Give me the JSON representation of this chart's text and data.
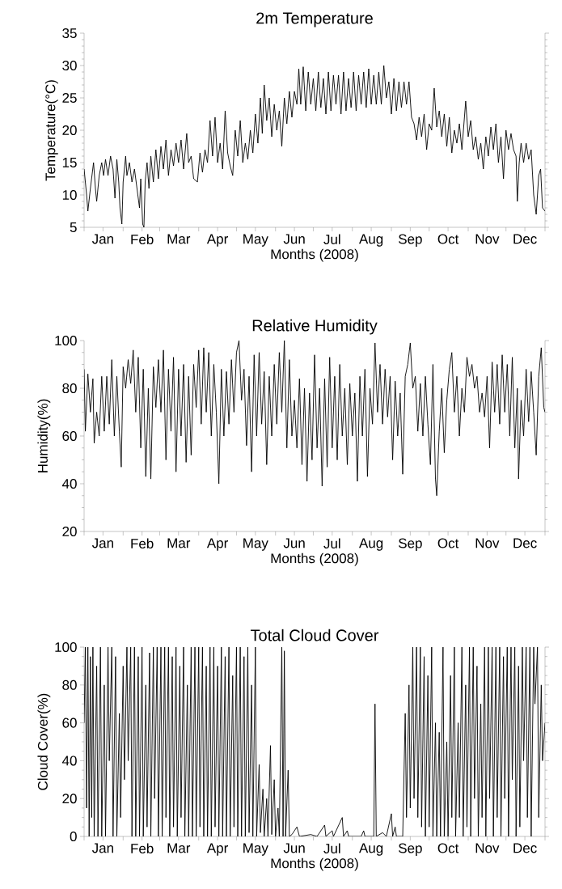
{
  "chart_data": [
    {
      "type": "line",
      "title": "2m Temperature",
      "xlabel": "Months (2008)",
      "ylabel": "Temperature(°C)",
      "color": "#000000",
      "xlim": [
        "2008-01-01",
        "2009-01-01"
      ],
      "ylim": [
        5,
        35
      ],
      "yticks": [
        5,
        10,
        15,
        20,
        25,
        30,
        35
      ],
      "xticks": [
        {
          "value": "2008-01-01",
          "label": null
        },
        {
          "value": "2008-01-16",
          "label": "Jan"
        },
        {
          "value": "2008-02-01",
          "label": null
        },
        {
          "value": "2008-02-16",
          "label": "Feb"
        },
        {
          "value": "2008-03-01",
          "label": null
        },
        {
          "value": "2008-03-16",
          "label": "Mar"
        },
        {
          "value": "2008-04-01",
          "label": null
        },
        {
          "value": "2008-04-16",
          "label": "Apr"
        },
        {
          "value": "2008-05-01",
          "label": null
        },
        {
          "value": "2008-05-16",
          "label": "May"
        },
        {
          "value": "2008-06-01",
          "label": null
        },
        {
          "value": "2008-06-16",
          "label": "Jun"
        },
        {
          "value": "2008-07-01",
          "label": null
        },
        {
          "value": "2008-07-16",
          "label": "Jul"
        },
        {
          "value": "2008-08-01",
          "label": null
        },
        {
          "value": "2008-08-16",
          "label": "Aug"
        },
        {
          "value": "2008-09-01",
          "label": null
        },
        {
          "value": "2008-09-16",
          "label": "Sep"
        },
        {
          "value": "2008-10-01",
          "label": null
        },
        {
          "value": "2008-10-16",
          "label": "Oct"
        },
        {
          "value": "2008-11-01",
          "label": null
        },
        {
          "value": "2008-11-16",
          "label": "Nov"
        },
        {
          "value": "2008-12-01",
          "label": null
        },
        {
          "value": "2008-12-16",
          "label": "Dec"
        },
        {
          "value": "2009-01-01",
          "label": null
        }
      ],
      "x": [
        "2008-01-01",
        "2008-01-03",
        "2008-01-04",
        "2008-01-06",
        "2008-01-08T12:00",
        "2008-01-10",
        "2008-01-11",
        "2008-01-13",
        "2008-01-15",
        "2008-01-16T12:00",
        "2008-01-18",
        "2008-01-20",
        "2008-01-22",
        "2008-01-24",
        "2008-01-25T12:00",
        "2008-01-27",
        "2008-01-28T12:00",
        "2008-01-29T12:00",
        "2008-01-31",
        "2008-02-01",
        "2008-02-03",
        "2008-02-04",
        "2008-02-06",
        "2008-02-08",
        "2008-02-10",
        "2008-02-12",
        "2008-02-14",
        "2008-02-15",
        "2008-02-16T12:00",
        "2008-02-17T12:00",
        "2008-02-18T12:00",
        "2008-02-20",
        "2008-02-21T12:00",
        "2008-02-23",
        "2008-02-25",
        "2008-02-27",
        "2008-02-29",
        "2008-03-02",
        "2008-03-04",
        "2008-03-06",
        "2008-03-08",
        "2008-03-10",
        "2008-03-12",
        "2008-03-14",
        "2008-03-16",
        "2008-03-18",
        "2008-03-20",
        "2008-03-22T12:00",
        "2008-03-24",
        "2008-03-26",
        "2008-03-28",
        "2008-03-31",
        "2008-04-02",
        "2008-04-04",
        "2008-04-06",
        "2008-04-08",
        "2008-04-10",
        "2008-04-12",
        "2008-04-14",
        "2008-04-16",
        "2008-04-18",
        "2008-04-20",
        "2008-04-22",
        "2008-04-24",
        "2008-04-26",
        "2008-04-28",
        "2008-04-30",
        "2008-05-02",
        "2008-05-04",
        "2008-05-06",
        "2008-05-08",
        "2008-05-10",
        "2008-05-12",
        "2008-05-14",
        "2008-05-16",
        "2008-05-18",
        "2008-05-20",
        "2008-05-21T12:00",
        "2008-05-23",
        "2008-05-25",
        "2008-05-27",
        "2008-05-29",
        "2008-05-31",
        "2008-06-02",
        "2008-06-04",
        "2008-06-06",
        "2008-06-08",
        "2008-06-10",
        "2008-06-12",
        "2008-06-14",
        "2008-06-16",
        "2008-06-18",
        "2008-06-19T12:00",
        "2008-06-21",
        "2008-06-23",
        "2008-06-25",
        "2008-06-27",
        "2008-06-29",
        "2008-07-01",
        "2008-07-03",
        "2008-07-05",
        "2008-07-07",
        "2008-07-09",
        "2008-07-11",
        "2008-07-13",
        "2008-07-15",
        "2008-07-17",
        "2008-07-19",
        "2008-07-21",
        "2008-07-23",
        "2008-07-25",
        "2008-07-27",
        "2008-07-29",
        "2008-07-31",
        "2008-08-02",
        "2008-08-04",
        "2008-08-06",
        "2008-08-08",
        "2008-08-10",
        "2008-08-12",
        "2008-08-14",
        "2008-08-16",
        "2008-08-18",
        "2008-08-20",
        "2008-08-22",
        "2008-08-24",
        "2008-08-26",
        "2008-08-28",
        "2008-08-30",
        "2008-09-01",
        "2008-09-03",
        "2008-09-05",
        "2008-09-07",
        "2008-09-09",
        "2008-09-11",
        "2008-09-13",
        "2008-09-15",
        "2008-09-17",
        "2008-09-19",
        "2008-09-21",
        "2008-09-23",
        "2008-09-25",
        "2008-09-27",
        "2008-09-29",
        "2008-10-01",
        "2008-10-03",
        "2008-10-05",
        "2008-10-07",
        "2008-10-09",
        "2008-10-11",
        "2008-10-13",
        "2008-10-15",
        "2008-10-17",
        "2008-10-19",
        "2008-10-21",
        "2008-10-23",
        "2008-10-25",
        "2008-10-27",
        "2008-10-30",
        "2008-11-01",
        "2008-11-03",
        "2008-11-05",
        "2008-11-07",
        "2008-11-09",
        "2008-11-11",
        "2008-11-13",
        "2008-11-15",
        "2008-11-17",
        "2008-11-19",
        "2008-11-21",
        "2008-11-23",
        "2008-11-25",
        "2008-11-27",
        "2008-11-29",
        "2008-12-01",
        "2008-12-03",
        "2008-12-05",
        "2008-12-07",
        "2008-12-09",
        "2008-12-10",
        "2008-12-11T12:00",
        "2008-12-13",
        "2008-12-15",
        "2008-12-17",
        "2008-12-19",
        "2008-12-21",
        "2008-12-23",
        "2008-12-25",
        "2008-12-27",
        "2008-12-28T12:00",
        "2008-12-30",
        "2009-01-01"
      ],
      "values": [
        14,
        10,
        7.5,
        11,
        15,
        11,
        9,
        13,
        15,
        13,
        15.5,
        13,
        16,
        14,
        9.5,
        15.5,
        12,
        8,
        5.5,
        12,
        16,
        13,
        15,
        12,
        14,
        11,
        8,
        12.5,
        5.5,
        5,
        12,
        15,
        11,
        16,
        12,
        17,
        12.5,
        17.5,
        14,
        18.5,
        13,
        17,
        14.5,
        18,
        15,
        18.5,
        14,
        19.5,
        15,
        16,
        12.5,
        12,
        16.5,
        13.5,
        17,
        15,
        21.5,
        16,
        22,
        15,
        18,
        14,
        23,
        16.5,
        14.5,
        13,
        20,
        16,
        21.5,
        15,
        18,
        15.5,
        20,
        16.5,
        22.5,
        18,
        25,
        19.5,
        27,
        21.5,
        25,
        19,
        24,
        20,
        23,
        17.5,
        25,
        21,
        26,
        22,
        26,
        24,
        29.5,
        24,
        29.8,
        23,
        29,
        24,
        28,
        23,
        29,
        23.5,
        28,
        22.5,
        29,
        23,
        28.5,
        24,
        28.5,
        22.5,
        29,
        23,
        28,
        23.5,
        29,
        23,
        28.5,
        24,
        29,
        23.5,
        29.5,
        24,
        28.5,
        24,
        29,
        24,
        30,
        25,
        27.5,
        22.5,
        28,
        23,
        27.5,
        23.5,
        27.5,
        24,
        27.5,
        22,
        21,
        18.5,
        22,
        19,
        22.5,
        17,
        21,
        20,
        26.5,
        20.5,
        23,
        19,
        22.5,
        17.5,
        22,
        16.5,
        20,
        18,
        21,
        17,
        24.5,
        19,
        21.5,
        17,
        19,
        15.5,
        18,
        14,
        19,
        16,
        20.5,
        17,
        21,
        15,
        19,
        12.5,
        20,
        17,
        19.5,
        17,
        16,
        9,
        15,
        18,
        15,
        18,
        15.5,
        17,
        10,
        7,
        13,
        14,
        8,
        7.5
      ]
    },
    {
      "type": "line",
      "title": "Relative Humidity",
      "xlabel": "Months (2008)",
      "ylabel": "Humidity(%)",
      "color": "#000000",
      "xlim": [
        "2008-01-01",
        "2009-01-01"
      ],
      "ylim": [
        20,
        100
      ],
      "yticks": [
        20,
        40,
        60,
        80,
        100
      ],
      "xticks": [
        {
          "value": "2008-01-01",
          "label": null
        },
        {
          "value": "2008-01-16",
          "label": "Jan"
        },
        {
          "value": "2008-02-01",
          "label": null
        },
        {
          "value": "2008-02-16",
          "label": "Feb"
        },
        {
          "value": "2008-03-01",
          "label": null
        },
        {
          "value": "2008-03-16",
          "label": "Mar"
        },
        {
          "value": "2008-04-01",
          "label": null
        },
        {
          "value": "2008-04-16",
          "label": "Apr"
        },
        {
          "value": "2008-05-01",
          "label": null
        },
        {
          "value": "2008-05-16",
          "label": "May"
        },
        {
          "value": "2008-06-01",
          "label": null
        },
        {
          "value": "2008-06-16",
          "label": "Jun"
        },
        {
          "value": "2008-07-01",
          "label": null
        },
        {
          "value": "2008-07-16",
          "label": "Jul"
        },
        {
          "value": "2008-08-01",
          "label": null
        },
        {
          "value": "2008-08-16",
          "label": "Aug"
        },
        {
          "value": "2008-09-01",
          "label": null
        },
        {
          "value": "2008-09-16",
          "label": "Sep"
        },
        {
          "value": "2008-10-01",
          "label": null
        },
        {
          "value": "2008-10-16",
          "label": "Oct"
        },
        {
          "value": "2008-11-01",
          "label": null
        },
        {
          "value": "2008-11-16",
          "label": "Nov"
        },
        {
          "value": "2008-12-01",
          "label": null
        },
        {
          "value": "2008-12-16",
          "label": "Dec"
        },
        {
          "value": "2009-01-01",
          "label": null
        }
      ],
      "x": [
        "2008-01-01",
        "2008-01-02",
        "2008-01-04",
        "2008-01-06",
        "2008-01-08",
        "2008-01-09",
        "2008-01-11",
        "2008-01-13",
        "2008-01-15",
        "2008-01-17",
        "2008-01-19",
        "2008-01-21",
        "2008-01-23",
        "2008-01-25",
        "2008-01-27",
        "2008-01-29",
        "2008-01-30T12:00",
        "2008-02-01",
        "2008-02-03",
        "2008-02-05",
        "2008-02-07",
        "2008-02-09",
        "2008-02-11",
        "2008-02-13",
        "2008-02-15",
        "2008-02-17",
        "2008-02-19",
        "2008-02-21",
        "2008-02-23",
        "2008-02-25",
        "2008-02-27",
        "2008-02-29",
        "2008-03-02",
        "2008-03-04",
        "2008-03-06",
        "2008-03-08",
        "2008-03-10",
        "2008-03-12",
        "2008-03-14",
        "2008-03-16",
        "2008-03-18",
        "2008-03-20",
        "2008-03-22",
        "2008-03-24",
        "2008-03-26",
        "2008-03-28",
        "2008-03-30",
        "2008-04-01",
        "2008-04-03",
        "2008-04-05",
        "2008-04-07",
        "2008-04-09",
        "2008-04-11",
        "2008-04-13",
        "2008-04-15",
        "2008-04-17",
        "2008-04-19",
        "2008-04-21",
        "2008-04-23",
        "2008-04-25",
        "2008-04-27",
        "2008-04-29",
        "2008-05-01",
        "2008-05-03",
        "2008-05-05",
        "2008-05-07",
        "2008-05-09",
        "2008-05-11",
        "2008-05-13",
        "2008-05-15",
        "2008-05-17",
        "2008-05-19",
        "2008-05-21",
        "2008-05-23",
        "2008-05-25",
        "2008-05-27",
        "2008-05-29",
        "2008-05-31",
        "2008-06-02",
        "2008-06-04",
        "2008-06-06",
        "2008-06-08",
        "2008-06-10",
        "2008-06-12",
        "2008-06-14",
        "2008-06-16",
        "2008-06-18",
        "2008-06-20",
        "2008-06-22",
        "2008-06-24",
        "2008-06-26",
        "2008-06-28",
        "2008-06-30",
        "2008-07-02",
        "2008-07-04",
        "2008-07-06",
        "2008-07-08",
        "2008-07-10",
        "2008-07-12",
        "2008-07-14",
        "2008-07-16",
        "2008-07-18",
        "2008-07-20",
        "2008-07-22",
        "2008-07-24",
        "2008-07-26",
        "2008-07-28",
        "2008-07-30",
        "2008-08-01",
        "2008-08-03",
        "2008-08-05",
        "2008-08-07",
        "2008-08-09",
        "2008-08-11",
        "2008-08-13",
        "2008-08-15",
        "2008-08-17",
        "2008-08-19",
        "2008-08-21",
        "2008-08-23",
        "2008-08-25",
        "2008-08-27",
        "2008-08-29",
        "2008-08-31",
        "2008-09-02",
        "2008-09-04",
        "2008-09-06",
        "2008-09-08",
        "2008-09-10",
        "2008-09-12",
        "2008-09-14",
        "2008-09-16",
        "2008-09-18",
        "2008-09-20",
        "2008-09-22",
        "2008-09-24",
        "2008-09-26",
        "2008-09-28",
        "2008-09-30",
        "2008-10-02",
        "2008-10-04",
        "2008-10-06",
        "2008-10-07",
        "2008-10-09",
        "2008-10-11",
        "2008-10-13",
        "2008-10-15",
        "2008-10-17",
        "2008-10-19",
        "2008-10-21",
        "2008-10-23",
        "2008-10-25",
        "2008-10-27",
        "2008-10-29",
        "2008-10-31",
        "2008-11-02",
        "2008-11-04",
        "2008-11-06",
        "2008-11-08",
        "2008-11-10",
        "2008-11-12",
        "2008-11-14",
        "2008-11-16",
        "2008-11-18",
        "2008-11-20",
        "2008-11-22",
        "2008-11-24",
        "2008-11-26",
        "2008-11-28",
        "2008-11-30",
        "2008-12-02",
        "2008-12-04",
        "2008-12-06",
        "2008-12-08",
        "2008-12-10",
        "2008-12-11",
        "2008-12-13",
        "2008-12-15",
        "2008-12-17",
        "2008-12-19",
        "2008-12-21",
        "2008-12-23",
        "2008-12-25",
        "2008-12-27",
        "2008-12-29",
        "2008-12-31",
        "2009-01-01"
      ],
      "values": [
        88,
        62,
        86,
        70,
        84,
        57,
        70,
        60,
        85,
        62,
        85,
        65,
        92,
        60,
        85,
        62,
        47,
        89,
        80,
        92,
        82,
        96,
        70,
        93,
        55,
        88,
        43,
        80,
        42,
        89,
        72,
        92,
        70,
        96,
        50,
        88,
        62,
        93,
        45,
        88,
        60,
        90,
        49,
        85,
        52,
        90,
        72,
        96,
        65,
        97,
        70,
        95,
        60,
        90,
        70,
        40,
        88,
        60,
        87,
        65,
        92,
        70,
        95,
        100,
        75,
        88,
        56,
        85,
        45,
        94,
        60,
        95,
        65,
        87,
        48,
        85,
        60,
        90,
        65,
        95,
        70,
        100,
        55,
        92,
        60,
        75,
        55,
        84,
        48,
        80,
        41,
        78,
        50,
        94,
        55,
        80,
        39,
        84,
        47,
        93,
        55,
        85,
        50,
        90,
        60,
        80,
        48,
        82,
        60,
        78,
        41,
        85,
        60,
        88,
        43,
        80,
        65,
        99,
        70,
        90,
        65,
        88,
        68,
        85,
        50,
        83,
        60,
        78,
        44,
        85,
        90,
        99,
        80,
        85,
        62,
        82,
        60,
        85,
        65,
        48,
        90,
        42,
        35,
        62,
        80,
        53,
        75,
        88,
        95,
        70,
        85,
        60,
        80,
        70,
        93,
        85,
        90,
        80,
        85,
        70,
        78,
        68,
        85,
        55,
        91,
        70,
        90,
        65,
        94,
        70,
        90,
        60,
        93,
        55,
        80,
        42,
        75,
        60,
        88,
        66,
        87,
        70,
        52,
        85,
        97,
        72,
        70
      ]
    },
    {
      "type": "line",
      "title": "Total Cloud Cover",
      "xlabel": "Months (2008)",
      "ylabel": "Cloud Cover(%)",
      "color": "#000000",
      "xlim": [
        "2008-01-01",
        "2009-01-01"
      ],
      "ylim": [
        0,
        100
      ],
      "yticks": [
        0,
        20,
        40,
        60,
        80,
        100
      ],
      "xticks": [
        {
          "value": "2008-01-01",
          "label": null
        },
        {
          "value": "2008-01-16",
          "label": "Jan"
        },
        {
          "value": "2008-02-01",
          "label": null
        },
        {
          "value": "2008-02-16",
          "label": "Feb"
        },
        {
          "value": "2008-03-01",
          "label": null
        },
        {
          "value": "2008-03-16",
          "label": "Mar"
        },
        {
          "value": "2008-04-01",
          "label": null
        },
        {
          "value": "2008-04-16",
          "label": "Apr"
        },
        {
          "value": "2008-05-01",
          "label": null
        },
        {
          "value": "2008-05-16",
          "label": "May"
        },
        {
          "value": "2008-06-01",
          "label": null
        },
        {
          "value": "2008-06-16",
          "label": "Jun"
        },
        {
          "value": "2008-07-01",
          "label": null
        },
        {
          "value": "2008-07-16",
          "label": "Jul"
        },
        {
          "value": "2008-08-01",
          "label": null
        },
        {
          "value": "2008-08-16",
          "label": "Aug"
        },
        {
          "value": "2008-09-01",
          "label": null
        },
        {
          "value": "2008-09-16",
          "label": "Sep"
        },
        {
          "value": "2008-10-01",
          "label": null
        },
        {
          "value": "2008-10-16",
          "label": "Oct"
        },
        {
          "value": "2008-11-01",
          "label": null
        },
        {
          "value": "2008-11-16",
          "label": "Nov"
        },
        {
          "value": "2008-12-01",
          "label": null
        },
        {
          "value": "2008-12-16",
          "label": "Dec"
        },
        {
          "value": "2009-01-01",
          "label": null
        }
      ],
      "x": [
        "2008-01-01",
        "2008-01-02",
        "2008-01-03",
        "2008-01-04",
        "2008-01-05",
        "2008-01-06",
        "2008-01-07",
        "2008-01-08",
        "2008-01-09",
        "2008-01-11",
        "2008-01-12",
        "2008-01-14",
        "2008-01-15",
        "2008-01-17",
        "2008-01-18",
        "2008-01-20",
        "2008-01-21",
        "2008-01-23",
        "2008-01-24",
        "2008-01-26",
        "2008-01-27",
        "2008-01-29",
        "2008-01-30",
        "2008-02-01",
        "2008-02-02",
        "2008-02-04",
        "2008-02-05",
        "2008-02-07",
        "2008-02-08",
        "2008-02-10",
        "2008-02-11",
        "2008-02-13",
        "2008-02-14",
        "2008-02-16",
        "2008-02-17",
        "2008-02-19",
        "2008-02-20",
        "2008-02-22",
        "2008-02-23",
        "2008-02-25",
        "2008-02-26",
        "2008-02-28",
        "2008-02-29",
        "2008-03-02",
        "2008-03-03",
        "2008-03-05",
        "2008-03-06",
        "2008-03-08",
        "2008-03-09",
        "2008-03-11",
        "2008-03-12",
        "2008-03-14",
        "2008-03-15",
        "2008-03-17",
        "2008-03-18",
        "2008-03-20",
        "2008-03-21",
        "2008-03-23",
        "2008-03-24",
        "2008-03-26",
        "2008-03-27",
        "2008-03-29",
        "2008-03-30",
        "2008-04-01",
        "2008-04-02",
        "2008-04-04",
        "2008-04-05",
        "2008-04-07",
        "2008-04-08",
        "2008-04-10",
        "2008-04-11",
        "2008-04-13",
        "2008-04-14",
        "2008-04-16",
        "2008-04-17",
        "2008-04-19",
        "2008-04-20",
        "2008-04-22",
        "2008-04-23",
        "2008-04-25",
        "2008-04-26",
        "2008-04-28",
        "2008-04-29",
        "2008-05-01",
        "2008-05-02",
        "2008-05-04",
        "2008-05-05",
        "2008-05-07",
        "2008-05-08",
        "2008-05-10",
        "2008-05-11",
        "2008-05-13",
        "2008-05-14",
        "2008-05-16",
        "2008-05-17",
        "2008-05-19",
        "2008-05-20",
        "2008-05-22",
        "2008-05-23",
        "2008-05-25",
        "2008-05-26",
        "2008-05-28",
        "2008-05-29",
        "2008-05-31",
        "2008-06-01",
        "2008-06-03",
        "2008-06-04",
        "2008-06-06",
        "2008-06-07",
        "2008-06-08",
        "2008-06-09",
        "2008-06-11",
        "2008-06-12",
        "2008-06-14",
        "2008-06-18",
        "2008-06-20",
        "2008-06-29",
        "2008-07-04",
        "2008-07-10",
        "2008-07-11",
        "2008-07-16",
        "2008-07-17",
        "2008-07-24",
        "2008-07-25",
        "2008-07-28",
        "2008-07-29",
        "2008-08-08",
        "2008-08-10",
        "2008-08-11",
        "2008-08-18",
        "2008-08-19",
        "2008-08-20",
        "2008-08-25",
        "2008-08-28",
        "2008-09-01",
        "2008-09-02",
        "2008-09-04",
        "2008-09-05",
        "2008-09-10",
        "2008-09-12",
        "2008-09-13",
        "2008-09-15",
        "2008-09-16",
        "2008-09-18",
        "2008-09-19",
        "2008-09-21",
        "2008-09-22",
        "2008-09-24",
        "2008-09-25",
        "2008-09-27",
        "2008-09-28",
        "2008-09-30",
        "2008-10-01",
        "2008-10-03",
        "2008-10-04",
        "2008-10-06",
        "2008-10-07",
        "2008-10-09",
        "2008-10-10",
        "2008-10-12",
        "2008-10-13",
        "2008-10-15",
        "2008-10-16",
        "2008-10-18",
        "2008-10-19",
        "2008-10-21",
        "2008-10-22",
        "2008-10-24",
        "2008-10-25",
        "2008-10-27",
        "2008-10-28",
        "2008-10-30",
        "2008-10-31",
        "2008-11-02",
        "2008-11-03",
        "2008-11-05",
        "2008-11-06",
        "2008-11-08",
        "2008-11-09",
        "2008-11-11",
        "2008-11-12",
        "2008-11-14",
        "2008-11-15",
        "2008-11-17",
        "2008-11-18",
        "2008-11-20",
        "2008-11-21",
        "2008-11-23",
        "2008-11-24",
        "2008-11-26",
        "2008-11-27",
        "2008-11-29",
        "2008-11-30",
        "2008-12-02",
        "2008-12-03",
        "2008-12-05",
        "2008-12-06",
        "2008-12-08",
        "2008-12-09",
        "2008-12-11",
        "2008-12-12",
        "2008-12-14",
        "2008-12-15",
        "2008-12-17",
        "2008-12-18",
        "2008-12-20",
        "2008-12-21",
        "2008-12-23",
        "2008-12-24",
        "2008-12-26",
        "2008-12-27",
        "2008-12-29",
        "2008-12-30",
        "2009-01-01"
      ],
      "values": [
        60,
        100,
        15,
        100,
        0,
        95,
        10,
        100,
        0,
        90,
        0,
        100,
        0,
        80,
        0,
        100,
        40,
        100,
        0,
        95,
        0,
        65,
        10,
        90,
        30,
        100,
        40,
        100,
        0,
        100,
        0,
        95,
        0,
        100,
        0,
        80,
        5,
        97,
        0,
        100,
        20,
        100,
        0,
        100,
        0,
        100,
        10,
        100,
        0,
        95,
        5,
        100,
        0,
        90,
        10,
        100,
        0,
        80,
        0,
        100,
        0,
        100,
        0,
        100,
        5,
        100,
        0,
        90,
        0,
        100,
        0,
        100,
        5,
        90,
        0,
        100,
        0,
        95,
        0,
        100,
        0,
        85,
        5,
        100,
        0,
        100,
        0,
        95,
        0,
        100,
        2,
        80,
        0,
        100,
        0,
        38,
        2,
        25,
        0,
        20,
        0,
        48,
        1,
        30,
        0,
        15,
        0,
        100,
        0,
        98,
        0,
        35,
        0,
        1,
        5,
        0,
        1,
        0,
        6,
        0,
        3,
        0,
        10,
        0,
        3,
        0,
        0,
        3,
        0,
        0,
        70,
        0,
        2,
        0,
        12,
        0,
        5,
        0,
        0,
        65,
        10,
        80,
        15,
        100,
        20,
        100,
        10,
        100,
        5,
        95,
        0,
        85,
        5,
        100,
        0,
        60,
        0,
        55,
        0,
        100,
        0,
        50,
        0,
        85,
        10,
        100,
        0,
        60,
        10,
        100,
        0,
        80,
        5,
        100,
        0,
        100,
        20,
        90,
        0,
        70,
        10,
        100,
        0,
        100,
        20,
        100,
        0,
        100,
        10,
        100,
        0,
        95,
        20,
        100,
        0,
        100,
        30,
        100,
        0,
        90,
        5,
        100,
        40,
        100,
        10,
        100,
        0,
        100,
        70,
        100,
        10,
        80,
        40,
        60
      ]
    }
  ]
}
